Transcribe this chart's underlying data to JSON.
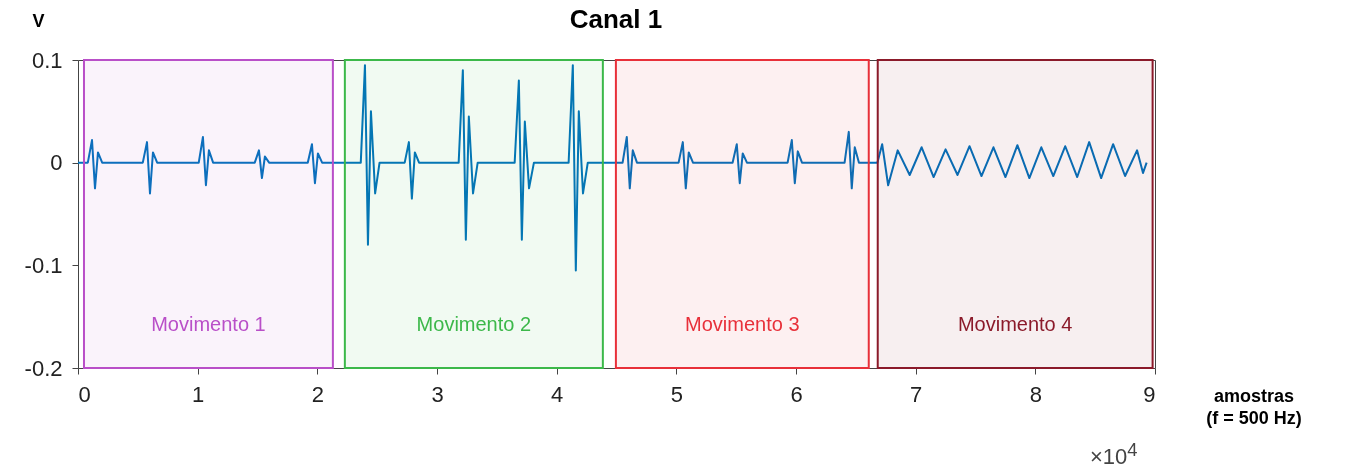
{
  "chart_data": {
    "type": "line",
    "title": "Canal 1",
    "xlabel": "amostras\n(f = 500 Hz)",
    "ylabel": "V",
    "x": [
      0,
      0.082,
      0.117,
      0.142,
      0.167,
      0.202,
      0.5415,
      0.5765,
      0.6015,
      0.6265,
      0.6615,
      1.009,
      1.044,
      1.069,
      1.094,
      1.129,
      1.477,
      1.512,
      1.537,
      1.562,
      1.597,
      1.92,
      1.955,
      1.98,
      2.005,
      2.04,
      2.363,
      2.398,
      2.423,
      2.448,
      2.483,
      2.52,
      2.73,
      2.765,
      2.79,
      2.815,
      2.85,
      3.181,
      3.216,
      3.241,
      3.266,
      3.301,
      3.34,
      3.649,
      3.684,
      3.709,
      3.734,
      3.769,
      3.81,
      4.1,
      4.135,
      4.16,
      4.185,
      4.22,
      4.26,
      4.551,
      4.586,
      4.611,
      4.636,
      4.671,
      5.019,
      5.054,
      5.079,
      5.104,
      5.139,
      5.47,
      5.505,
      5.53,
      5.555,
      5.59,
      5.93,
      5.965,
      5.99,
      6.015,
      6.05,
      6.406,
      6.441,
      6.466,
      6.491,
      6.526,
      6.68,
      6.72,
      6.77,
      6.85,
      6.95,
      7.05,
      7.15,
      7.25,
      7.35,
      7.45,
      7.55,
      7.65,
      7.75,
      7.85,
      7.95,
      8.05,
      8.15,
      8.25,
      8.35,
      8.45,
      8.55,
      8.65,
      8.75,
      8.85,
      8.9,
      8.93
    ],
    "series": [
      {
        "color": "#0072bd",
        "values": [
          0,
          0,
          0.022,
          -0.025,
          0.01,
          0,
          0,
          0.02,
          -0.03,
          0.01,
          0,
          0,
          0.025,
          -0.022,
          0.012,
          0,
          0,
          0.012,
          -0.015,
          0.006,
          0,
          0,
          0.018,
          -0.02,
          0.009,
          0,
          0,
          0.095,
          -0.08,
          0.05,
          -0.03,
          0,
          0,
          0.02,
          -0.035,
          0.01,
          0,
          0,
          0.09,
          -0.075,
          0.045,
          -0.03,
          0,
          0,
          0.08,
          -0.075,
          0.04,
          -0.025,
          0,
          0,
          0.095,
          -0.105,
          0.05,
          -0.03,
          0,
          0,
          0.025,
          -0.025,
          0.012,
          0,
          0,
          0.02,
          -0.025,
          0.01,
          0,
          0,
          0.018,
          -0.02,
          0.009,
          0,
          0,
          0.022,
          -0.02,
          0.011,
          0,
          0,
          0.03,
          -0.025,
          0.015,
          0,
          0,
          0.018,
          -0.022,
          0.012,
          -0.012,
          0.015,
          -0.014,
          0.013,
          -0.012,
          0.016,
          -0.013,
          0.015,
          -0.014,
          0.017,
          -0.015,
          0.015,
          -0.013,
          0.016,
          -0.014,
          0.02,
          -0.015,
          0.018,
          -0.013,
          0.012,
          -0.01,
          0
        ]
      }
    ],
    "xlim": [
      0,
      9
    ],
    "xticks": [
      0,
      1,
      2,
      3,
      4,
      5,
      6,
      7,
      8,
      9
    ],
    "ylim": [
      -0.2,
      0.1
    ],
    "yticks": [
      -0.2,
      -0.1,
      0,
      0.1
    ],
    "bands": [
      {
        "axis": "x",
        "from": 0.05,
        "to": 2.13,
        "label": "Movimento 1",
        "color": "#b94fc8"
      },
      {
        "axis": "x",
        "from": 2.23,
        "to": 4.386,
        "label": "Movimento 2",
        "color": "#3cb84a"
      },
      {
        "axis": "x",
        "from": 4.495,
        "to": 6.608,
        "label": "Movimento 3",
        "color": "#e8303a"
      },
      {
        "axis": "x",
        "from": 6.683,
        "to": 8.98,
        "label": "Movimento 4",
        "color": "#8b1a2a"
      }
    ],
    "annotations": [
      "×10$^{4}$"
    ],
    "grid": false
  }
}
